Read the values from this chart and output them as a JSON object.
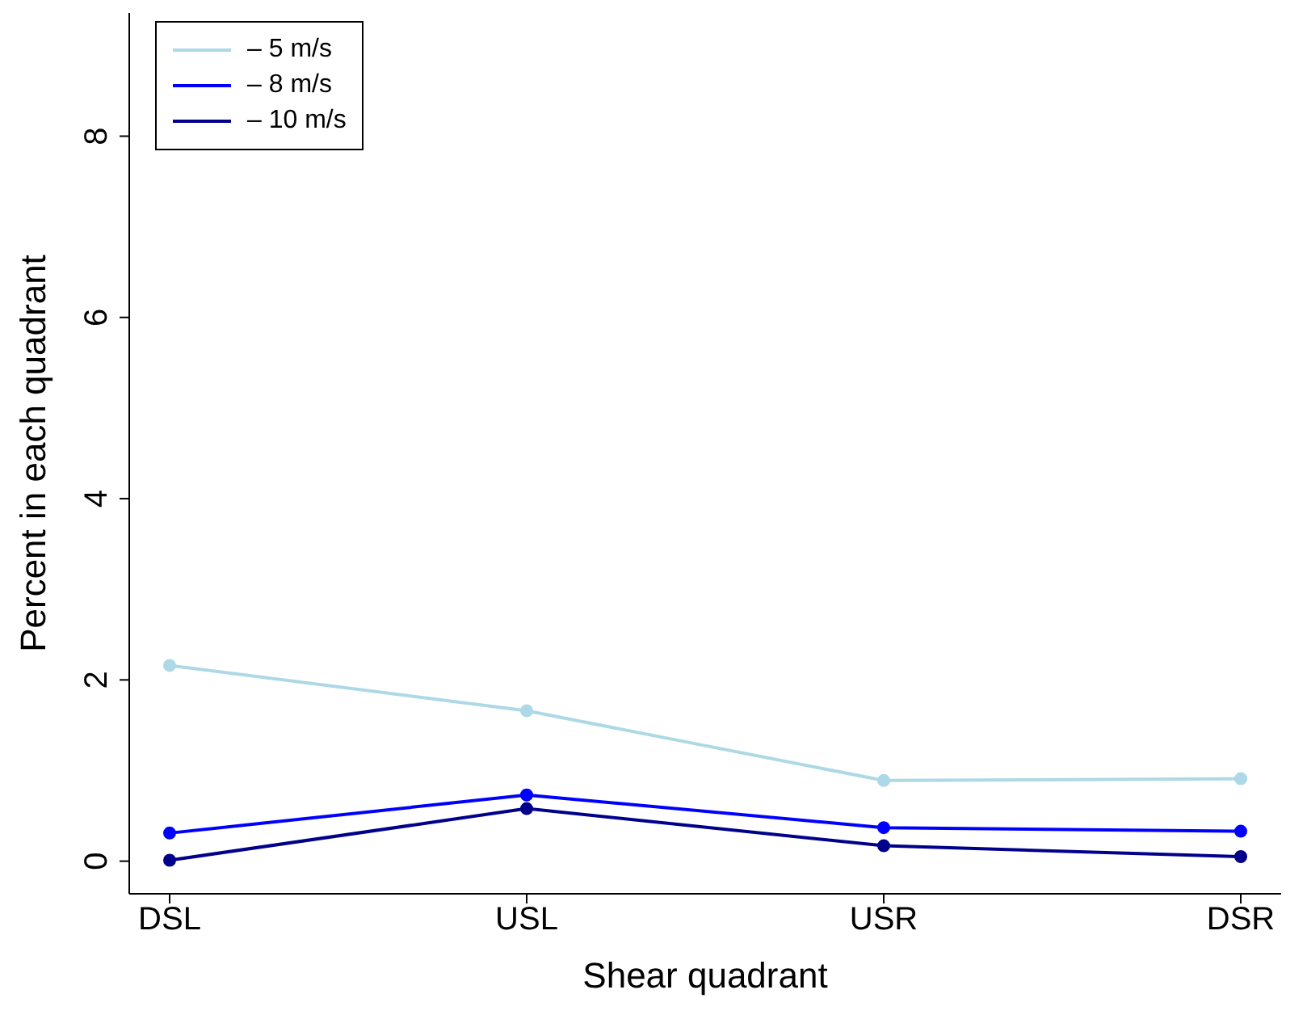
{
  "chart_data": {
    "type": "line",
    "xlabel": "Shear quadrant",
    "ylabel": "Percent in each quadrant",
    "categories": [
      "DSL",
      "USL",
      "USR",
      "DSR"
    ],
    "series": [
      {
        "name": "– 5 m/s",
        "color": "#add8e6",
        "values": [
          2.16,
          1.66,
          0.89,
          0.91
        ]
      },
      {
        "name": "– 8 m/s",
        "color": "#0000ff",
        "values": [
          0.31,
          0.73,
          0.37,
          0.33
        ]
      },
      {
        "name": "– 10 m/s",
        "color": "#00008b",
        "values": [
          0.01,
          0.58,
          0.17,
          0.05
        ]
      }
    ],
    "ylim": [
      -0.36,
      9.36
    ],
    "yticks": [
      0,
      2,
      4,
      6,
      8
    ],
    "grid": false,
    "legend": "top left",
    "marker": "circle",
    "line_style": "solid"
  }
}
